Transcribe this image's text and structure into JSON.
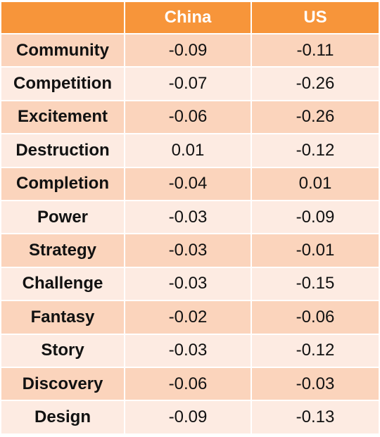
{
  "chart_data": {
    "type": "table",
    "columns": [
      "",
      "China",
      "US"
    ],
    "rows": [
      {
        "label": "Community",
        "china": "-0.09",
        "us": "-0.11"
      },
      {
        "label": "Competition",
        "china": "-0.07",
        "us": "-0.26"
      },
      {
        "label": "Excitement",
        "china": "-0.06",
        "us": "-0.26"
      },
      {
        "label": "Destruction",
        "china": "0.01",
        "us": "-0.12"
      },
      {
        "label": "Completion",
        "china": "-0.04",
        "us": "0.01"
      },
      {
        "label": "Power",
        "china": "-0.03",
        "us": "-0.09"
      },
      {
        "label": "Strategy",
        "china": "-0.03",
        "us": "-0.01"
      },
      {
        "label": "Challenge",
        "china": "-0.03",
        "us": "-0.15"
      },
      {
        "label": "Fantasy",
        "china": "-0.02",
        "us": "-0.06"
      },
      {
        "label": "Story",
        "china": "-0.03",
        "us": "-0.12"
      },
      {
        "label": "Discovery",
        "china": "-0.06",
        "us": "-0.03"
      },
      {
        "label": "Design",
        "china": "-0.09",
        "us": "-0.13"
      }
    ]
  },
  "colors": {
    "header": "#F7953A",
    "row_dark": "#FBD4BC",
    "row_light": "#FDEBE2"
  }
}
